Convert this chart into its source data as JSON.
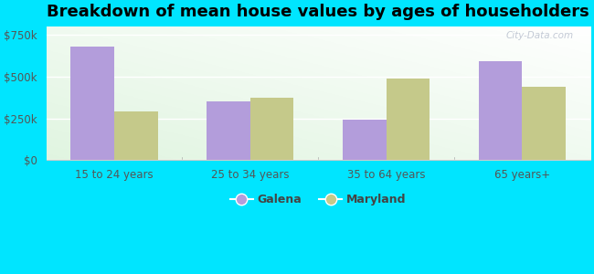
{
  "title": "Breakdown of mean house values by ages of householders",
  "categories": [
    "15 to 24 years",
    "25 to 34 years",
    "35 to 64 years",
    "65 years+"
  ],
  "galena_values": [
    680000,
    350000,
    240000,
    595000
  ],
  "maryland_values": [
    290000,
    375000,
    490000,
    440000
  ],
  "galena_color": "#b39ddb",
  "maryland_color": "#c5c98a",
  "ylim": [
    0,
    800000
  ],
  "yticks": [
    0,
    250000,
    500000,
    750000
  ],
  "ytick_labels": [
    "$0",
    "$250k",
    "$500k",
    "$750k"
  ],
  "background_color": "#00e5ff",
  "title_fontsize": 13,
  "bar_width": 0.32,
  "legend_labels": [
    "Galena",
    "Maryland"
  ],
  "watermark": "City-Data.com"
}
